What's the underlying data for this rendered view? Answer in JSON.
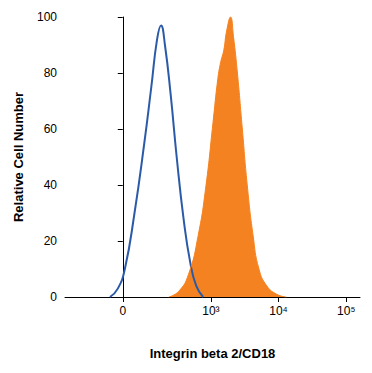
{
  "chart_data": {
    "type": "line",
    "x_label": "Integrin beta 2/CD18",
    "y_label": "Relative Cell Number",
    "xlim": [
      -350,
      160000
    ],
    "xticks": [
      0,
      {
        "value": 1000,
        "label": "10³"
      },
      {
        "value": 10000,
        "label": "10⁴"
      },
      {
        "value": 100000,
        "label": "10⁵"
      }
    ],
    "ylim": [
      0,
      100
    ],
    "yticks": [
      0,
      20,
      40,
      60,
      80,
      100
    ],
    "grid": false,
    "series": [
      {
        "type": "line",
        "color": "#2b5ba8",
        "x": [
          -45,
          -17,
          7,
          41,
          80,
          113,
          145,
          170,
          198,
          246,
          305,
          389,
          494,
          605,
          766
        ],
        "values": [
          0,
          3,
          10,
          30,
          55,
          75,
          92,
          97,
          90,
          72,
          50,
          28,
          12,
          4,
          0
        ]
      },
      {
        "type": "area",
        "color": "#f58220",
        "x": [
          229,
          327,
          461,
          647,
          847,
          1071,
          1268,
          1400,
          1549,
          1710,
          1955,
          2160,
          2470,
          2920,
          3450,
          4210,
          5140,
          6710,
          9370,
          13080
        ],
        "values": [
          0,
          2,
          8,
          22,
          40,
          62,
          78,
          84,
          88,
          95,
          100,
          93,
          80,
          60,
          40,
          22,
          10,
          4,
          1,
          0
        ]
      }
    ]
  }
}
